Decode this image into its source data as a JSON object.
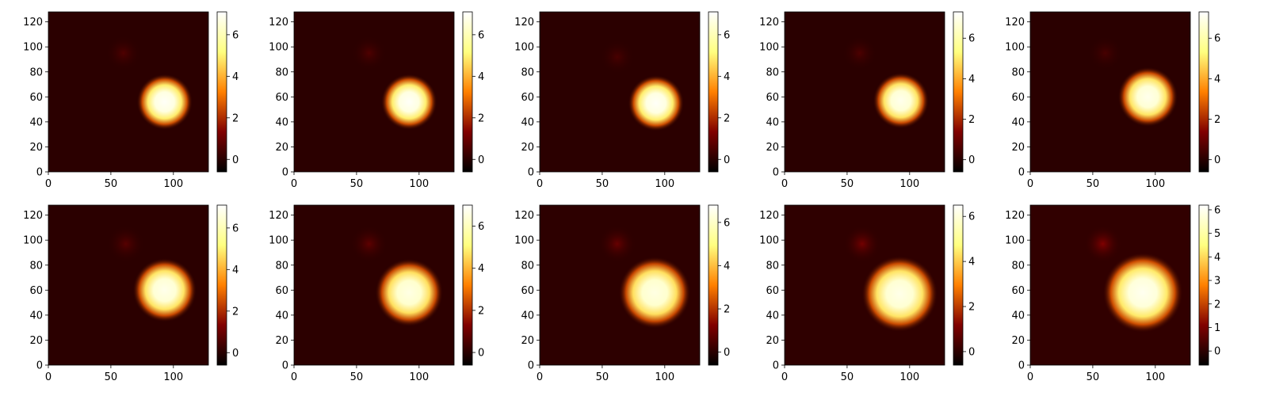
{
  "chart_data": {
    "type": "heatmap",
    "grid": false,
    "colormap": "afmhot",
    "panels": [
      {
        "x_ticks": [
          0,
          50,
          100
        ],
        "y_ticks": [
          0,
          20,
          40,
          60,
          80,
          100,
          120
        ],
        "xlim": [
          0,
          128
        ],
        "ylim": [
          0,
          128
        ],
        "c_ticks": [
          0,
          2,
          4,
          6
        ],
        "clim": [
          -0.6,
          7.1
        ],
        "blob": {
          "x": 93,
          "y": 56,
          "r": 14,
          "peak": 7.0
        },
        "halo": {
          "x": 60,
          "y": 95,
          "r": 14,
          "value": 0.6
        }
      },
      {
        "x_ticks": [
          0,
          50,
          100
        ],
        "y_ticks": [
          0,
          20,
          40,
          60,
          80,
          100,
          120
        ],
        "xlim": [
          0,
          128
        ],
        "ylim": [
          0,
          128
        ],
        "c_ticks": [
          0,
          2,
          4,
          6
        ],
        "clim": [
          -0.6,
          7.1
        ],
        "blob": {
          "x": 92,
          "y": 56,
          "r": 14,
          "peak": 7.0
        },
        "halo": {
          "x": 60,
          "y": 95,
          "r": 14,
          "value": 0.6
        }
      },
      {
        "x_ticks": [
          0,
          50,
          100
        ],
        "y_ticks": [
          0,
          20,
          40,
          60,
          80,
          100,
          120
        ],
        "xlim": [
          0,
          128
        ],
        "ylim": [
          0,
          128
        ],
        "c_ticks": [
          0,
          2,
          4,
          6
        ],
        "clim": [
          -0.6,
          7.1
        ],
        "blob": {
          "x": 93,
          "y": 55,
          "r": 14,
          "peak": 7.0
        },
        "halo": {
          "x": 62,
          "y": 92,
          "r": 14,
          "value": 0.5
        }
      },
      {
        "x_ticks": [
          0,
          50,
          100
        ],
        "y_ticks": [
          0,
          20,
          40,
          60,
          80,
          100,
          120
        ],
        "xlim": [
          0,
          128
        ],
        "ylim": [
          0,
          128
        ],
        "c_ticks": [
          0,
          2,
          4,
          6
        ],
        "clim": [
          -0.6,
          7.3
        ],
        "blob": {
          "x": 93,
          "y": 57,
          "r": 14,
          "peak": 7.0
        },
        "halo": {
          "x": 60,
          "y": 95,
          "r": 14,
          "value": 0.6
        }
      },
      {
        "x_ticks": [
          0,
          50,
          100
        ],
        "y_ticks": [
          0,
          20,
          40,
          60,
          80,
          100,
          120
        ],
        "xlim": [
          0,
          128
        ],
        "ylim": [
          0,
          128
        ],
        "c_ticks": [
          0,
          2,
          4,
          6
        ],
        "clim": [
          -0.6,
          7.3
        ],
        "blob": {
          "x": 94,
          "y": 60,
          "r": 15,
          "peak": 7.0
        },
        "halo": {
          "x": 60,
          "y": 95,
          "r": 14,
          "value": 0.5
        }
      },
      {
        "x_ticks": [
          0,
          50,
          100
        ],
        "y_ticks": [
          0,
          20,
          40,
          60,
          80,
          100,
          120
        ],
        "xlim": [
          0,
          128
        ],
        "ylim": [
          0,
          128
        ],
        "c_ticks": [
          0,
          2,
          4,
          6
        ],
        "clim": [
          -0.6,
          7.1
        ],
        "blob": {
          "x": 93,
          "y": 60,
          "r": 16,
          "peak": 6.8
        },
        "halo": {
          "x": 62,
          "y": 97,
          "r": 15,
          "value": 0.7
        }
      },
      {
        "x_ticks": [
          0,
          50,
          100
        ],
        "y_ticks": [
          0,
          20,
          40,
          60,
          80,
          100,
          120
        ],
        "xlim": [
          0,
          128
        ],
        "ylim": [
          0,
          128
        ],
        "c_ticks": [
          0,
          2,
          4,
          6
        ],
        "clim": [
          -0.6,
          7.0
        ],
        "blob": {
          "x": 92,
          "y": 58,
          "r": 17,
          "peak": 6.6
        },
        "halo": {
          "x": 60,
          "y": 97,
          "r": 15,
          "value": 0.8
        }
      },
      {
        "x_ticks": [
          0,
          50,
          100
        ],
        "y_ticks": [
          0,
          20,
          40,
          60,
          80,
          100,
          120
        ],
        "xlim": [
          0,
          128
        ],
        "ylim": [
          0,
          128
        ],
        "c_ticks": [
          0,
          2,
          4,
          6
        ],
        "clim": [
          -0.6,
          6.8
        ],
        "blob": {
          "x": 92,
          "y": 58,
          "r": 18,
          "peak": 6.4
        },
        "halo": {
          "x": 62,
          "y": 97,
          "r": 15,
          "value": 0.9
        }
      },
      {
        "x_ticks": [
          0,
          50,
          100
        ],
        "y_ticks": [
          0,
          20,
          40,
          60,
          80,
          100,
          120
        ],
        "xlim": [
          0,
          128
        ],
        "ylim": [
          0,
          128
        ],
        "c_ticks": [
          0,
          2,
          4,
          6
        ],
        "clim": [
          -0.6,
          6.5
        ],
        "blob": {
          "x": 92,
          "y": 57,
          "r": 19,
          "peak": 6.2
        },
        "halo": {
          "x": 62,
          "y": 97,
          "r": 15,
          "value": 1.0
        }
      },
      {
        "x_ticks": [
          0,
          50,
          100
        ],
        "y_ticks": [
          0,
          20,
          40,
          60,
          80,
          100,
          120
        ],
        "xlim": [
          0,
          128
        ],
        "ylim": [
          0,
          128
        ],
        "c_ticks": [
          0,
          1,
          2,
          3,
          4,
          5,
          6
        ],
        "clim": [
          -0.6,
          6.2
        ],
        "blob": {
          "x": 90,
          "y": 58,
          "r": 20,
          "peak": 6.0
        },
        "halo": {
          "x": 58,
          "y": 97,
          "r": 15,
          "value": 1.1
        }
      }
    ]
  }
}
